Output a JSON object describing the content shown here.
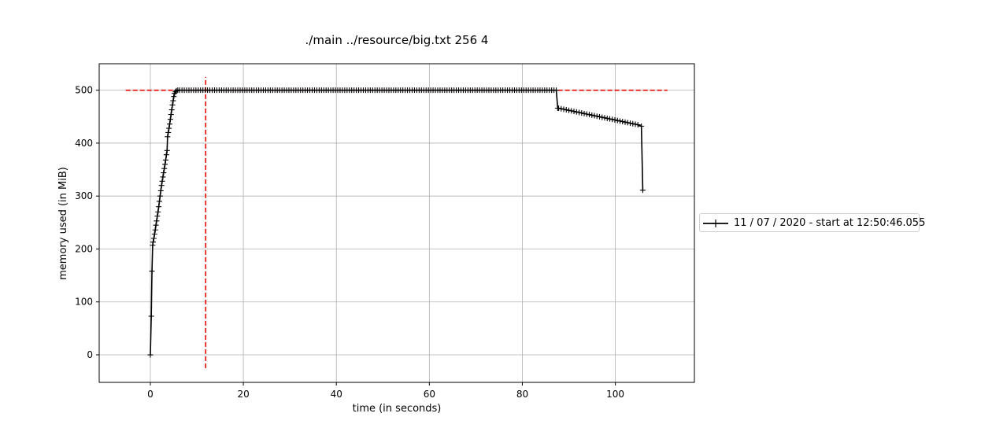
{
  "chart_data": {
    "type": "line",
    "title": "./main ../resource/big.txt 256 4",
    "xlabel": "time (in seconds)",
    "ylabel": "memory used (in MiB)",
    "xlim": [
      -11,
      117
    ],
    "ylim": [
      -52,
      550
    ],
    "xticks": [
      0,
      20,
      40,
      60,
      80,
      100
    ],
    "yticks": [
      0,
      100,
      200,
      300,
      400,
      500
    ],
    "grid": true,
    "legend_position": "right",
    "series": [
      {
        "name": "11 / 07 / 2020 - start at 12:50:46.055",
        "color": "#000000",
        "marker": "+",
        "ramp_points": [
          [
            0.0,
            0
          ],
          [
            0.2,
            73
          ],
          [
            0.35,
            158
          ],
          [
            0.5,
            207
          ],
          [
            0.6,
            213
          ],
          [
            0.75,
            220
          ],
          [
            0.9,
            228
          ],
          [
            1.05,
            236
          ],
          [
            1.2,
            245
          ],
          [
            1.35,
            253
          ],
          [
            1.5,
            262
          ],
          [
            1.65,
            270
          ],
          [
            1.8,
            280
          ],
          [
            1.95,
            290
          ],
          [
            2.1,
            300
          ],
          [
            2.25,
            310
          ],
          [
            2.4,
            320
          ],
          [
            2.55,
            328
          ],
          [
            2.7,
            336
          ],
          [
            2.85,
            344
          ],
          [
            3.0,
            352
          ],
          [
            3.15,
            360
          ],
          [
            3.3,
            368
          ],
          [
            3.45,
            378
          ],
          [
            3.6,
            386
          ],
          [
            3.7,
            412
          ],
          [
            3.85,
            420
          ],
          [
            4.0,
            428
          ],
          [
            4.15,
            436
          ],
          [
            4.3,
            445
          ],
          [
            4.45,
            454
          ],
          [
            4.6,
            463
          ],
          [
            4.75,
            472
          ],
          [
            4.9,
            480
          ],
          [
            5.05,
            488
          ],
          [
            5.2,
            494
          ],
          [
            5.4,
            497
          ],
          [
            5.6,
            499
          ],
          [
            5.9,
            500
          ],
          [
            6.3,
            500
          ]
        ],
        "plateau": {
          "x_start": 6.3,
          "x_end": 87.5,
          "step": 0.5,
          "y": 500
        },
        "drop": {
          "x": 87.6,
          "y": 466
        },
        "decline": {
          "x_start": 87.8,
          "x_end": 105.2,
          "step": 0.55,
          "y_start": 466,
          "y_end": 434
        },
        "tail_points": [
          [
            105.6,
            432
          ],
          [
            105.9,
            311
          ]
        ]
      }
    ],
    "reference_lines": [
      {
        "orientation": "horizontal",
        "y": 500,
        "x_from": -5.3,
        "x_to": 111.2,
        "color": "#e60000",
        "style": "dashed"
      },
      {
        "orientation": "vertical",
        "x": 11.9,
        "y_from": -25,
        "y_to": 525,
        "color": "#e60000",
        "style": "dashed"
      }
    ]
  }
}
